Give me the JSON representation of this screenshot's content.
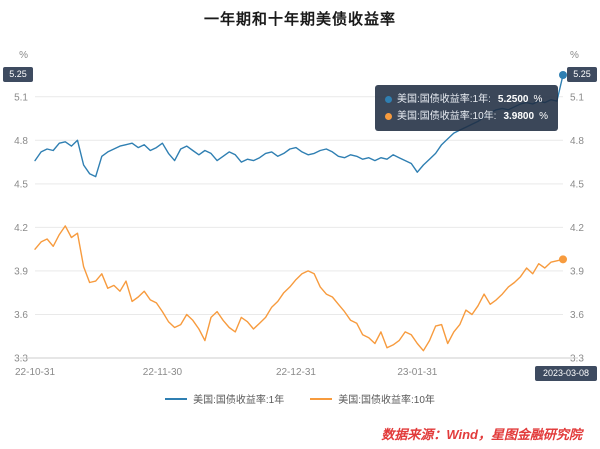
{
  "chart_data": {
    "type": "line",
    "title": "一年期和十年期美债收益率",
    "xlabel": "",
    "ylabel": "",
    "unit": "%",
    "ylim": [
      3.3,
      5.25
    ],
    "y_ticks": [
      3.3,
      3.6,
      3.9,
      4.2,
      4.5,
      4.8,
      5.1
    ],
    "grid": true,
    "legend_position": "bottom",
    "x_ticks": [
      {
        "label": "22-10-31",
        "index": 0
      },
      {
        "label": "22-11-30",
        "index": 21
      },
      {
        "label": "22-12-31",
        "index": 43
      },
      {
        "label": "23-01-31",
        "index": 63
      }
    ],
    "current_date": "2023-03-08",
    "current_value_badge": "5.25",
    "series": [
      {
        "name": "美国:国债收益率:1年",
        "color": "#2f7fb2",
        "last_value": 5.25,
        "values": [
          4.66,
          4.72,
          4.74,
          4.73,
          4.78,
          4.79,
          4.76,
          4.8,
          4.63,
          4.57,
          4.55,
          4.69,
          4.72,
          4.74,
          4.76,
          4.77,
          4.78,
          4.75,
          4.77,
          4.73,
          4.75,
          4.78,
          4.71,
          4.66,
          4.74,
          4.76,
          4.73,
          4.7,
          4.73,
          4.71,
          4.66,
          4.69,
          4.72,
          4.7,
          4.65,
          4.67,
          4.66,
          4.68,
          4.71,
          4.72,
          4.69,
          4.71,
          4.74,
          4.75,
          4.72,
          4.7,
          4.71,
          4.73,
          4.74,
          4.72,
          4.69,
          4.68,
          4.7,
          4.69,
          4.67,
          4.68,
          4.66,
          4.68,
          4.67,
          4.7,
          4.68,
          4.66,
          4.64,
          4.58,
          4.63,
          4.67,
          4.71,
          4.77,
          4.81,
          4.85,
          4.87,
          4.89,
          4.91,
          4.93,
          4.96,
          4.99,
          5.01,
          5.02,
          5.01,
          5.03,
          5.05,
          5.06,
          5.05,
          5.07,
          5.06,
          5.08,
          5.07,
          5.25
        ]
      },
      {
        "name": "美国:国债收益率:10年",
        "color": "#f79b3e",
        "last_value": 3.98,
        "values": [
          4.05,
          4.1,
          4.12,
          4.07,
          4.15,
          4.21,
          4.13,
          4.16,
          3.93,
          3.82,
          3.83,
          3.88,
          3.78,
          3.8,
          3.76,
          3.83,
          3.69,
          3.72,
          3.76,
          3.7,
          3.68,
          3.62,
          3.55,
          3.51,
          3.53,
          3.6,
          3.56,
          3.5,
          3.42,
          3.58,
          3.62,
          3.56,
          3.51,
          3.48,
          3.58,
          3.55,
          3.5,
          3.54,
          3.58,
          3.65,
          3.69,
          3.75,
          3.79,
          3.84,
          3.88,
          3.9,
          3.88,
          3.79,
          3.74,
          3.72,
          3.67,
          3.62,
          3.56,
          3.54,
          3.46,
          3.44,
          3.4,
          3.48,
          3.37,
          3.39,
          3.42,
          3.48,
          3.46,
          3.4,
          3.35,
          3.42,
          3.52,
          3.53,
          3.4,
          3.48,
          3.53,
          3.63,
          3.6,
          3.66,
          3.74,
          3.67,
          3.7,
          3.74,
          3.79,
          3.82,
          3.86,
          3.92,
          3.88,
          3.95,
          3.92,
          3.96,
          3.97,
          3.98
        ]
      }
    ]
  },
  "tooltip": {
    "series1_label": "美国:国债收益率:1年:",
    "series1_value": "5.2500",
    "series2_label": "美国:国债收益率:10年:",
    "series2_value": "3.9800",
    "unit": "%"
  },
  "footer": {
    "source": "数据来源：Wind，星图金融研究院"
  },
  "colors": {
    "series1": "#2f7fb2",
    "series2": "#f79b3e",
    "badge_bg": "#3e4b60",
    "source_text": "#e23b3b",
    "grid": "#e9e9e9"
  }
}
